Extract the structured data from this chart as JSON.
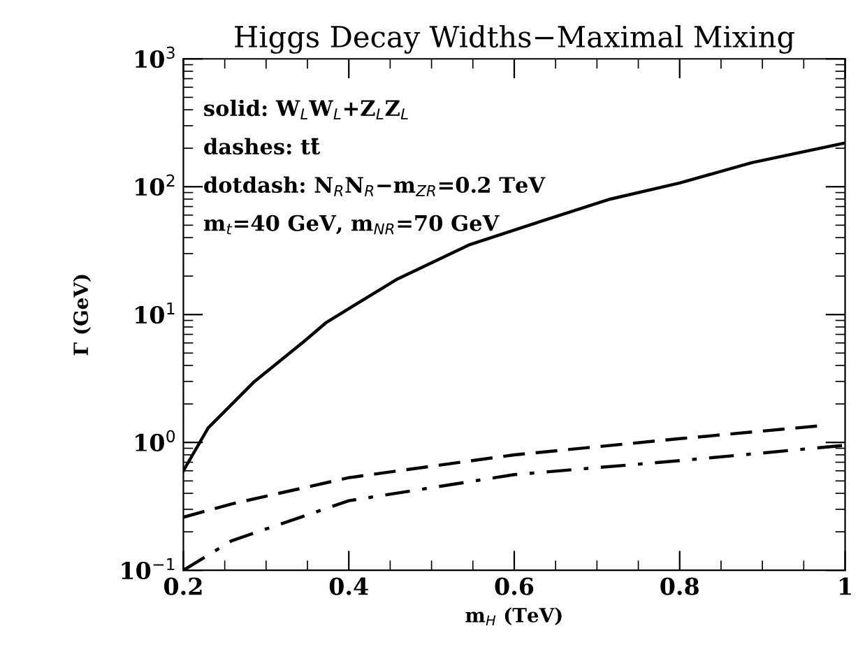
{
  "chart_data": {
    "type": "line",
    "title": "Higgs Decay Widths−Maximal Mixing",
    "xlabel": "m$_{H}$ (TeV)",
    "ylabel": "Γ (GeV)",
    "annotations": [
      "solid: W$_{L}$W$_{L}$+Z$_{L}$Z$_{L}$",
      "dashes: tt̄",
      "dotdash: N$_{R}$N$_{R}$−m$_{ZR}$=0.2 TeV",
      "m$_{t}$=40 GeV, m$_{NR}$=70 GeV"
    ],
    "log": "y",
    "xlim": [
      0.2,
      1.0
    ],
    "ylim": [
      0.1,
      1000
    ],
    "xticks": [
      0.2,
      0.4,
      0.6,
      0.8,
      1
    ],
    "yticks": [
      {
        "value": 0.1,
        "label": "10$^{−1}$"
      },
      {
        "value": 1,
        "label": "10$^{0}$"
      },
      {
        "value": 10,
        "label": "10$^{1}$"
      },
      {
        "value": 100,
        "label": "10$^{2}$"
      },
      {
        "value": 1000,
        "label": "10$^{3}$"
      }
    ],
    "grid": false,
    "series": [
      {
        "color": "#000000",
        "line_style": "solid",
        "x": [
          0.2,
          0.23,
          0.286,
          0.345,
          0.373,
          0.459,
          0.545,
          0.63,
          0.716,
          0.8,
          0.887,
          1.0
        ],
        "values": [
          0.6,
          1.3,
          3.0,
          6.1,
          8.7,
          19,
          35,
          53,
          80,
          107,
          154,
          220
        ]
      },
      {
        "color": "#000000",
        "line_style": "dashed",
        "x": [
          0.2,
          0.258,
          0.4,
          0.6,
          0.8,
          0.97
        ],
        "values": [
          0.26,
          0.33,
          0.53,
          0.8,
          1.07,
          1.35
        ]
      },
      {
        "color": "#000000",
        "line_style": "dashdot",
        "x": [
          0.2,
          0.258,
          0.4,
          0.6,
          0.8,
          1.0
        ],
        "values": [
          0.1,
          0.17,
          0.35,
          0.56,
          0.72,
          0.95
        ]
      }
    ]
  }
}
